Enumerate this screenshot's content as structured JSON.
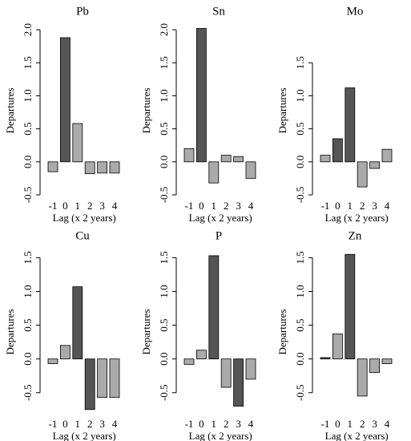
{
  "chart_data": [
    {
      "type": "bar",
      "title": "Pb",
      "xlabel": "Lag (x 2 years)",
      "ylabel": "Departures",
      "categories": [
        "-1",
        "0",
        "1",
        "2",
        "3",
        "4"
      ],
      "values": [
        -0.15,
        1.88,
        0.58,
        -0.18,
        -0.17,
        -0.17
      ],
      "colors": [
        "#aaaaaa",
        "#555555",
        "#aaaaaa",
        "#aaaaaa",
        "#aaaaaa",
        "#aaaaaa"
      ],
      "ylim": [
        -0.5,
        2.05
      ],
      "yticks": [
        -0.5,
        {
          "value": 0,
          "label": "0.0"
        },
        0.5,
        {
          "value": 1,
          "label": "1.0"
        },
        1.5,
        {
          "value": 2,
          "label": "2.0"
        }
      ]
    },
    {
      "type": "bar",
      "title": "Sn",
      "xlabel": "Lag (x 2 years)",
      "ylabel": "Departures",
      "categories": [
        "-1",
        "0",
        "1",
        "2",
        "3",
        "4"
      ],
      "values": [
        0.2,
        2.02,
        -0.32,
        0.1,
        0.08,
        -0.25
      ],
      "colors": [
        "#aaaaaa",
        "#555555",
        "#aaaaaa",
        "#aaaaaa",
        "#aaaaaa",
        "#aaaaaa"
      ],
      "ylim": [
        -0.5,
        2.05
      ],
      "yticks": [
        -0.5,
        {
          "value": 0,
          "label": "0.0"
        },
        0.5,
        {
          "value": 1,
          "label": "1.0"
        },
        1.5,
        {
          "value": 2,
          "label": "2.0"
        }
      ]
    },
    {
      "type": "bar",
      "title": "Mo",
      "xlabel": "Lag (x 2 years)",
      "ylabel": "Departures",
      "categories": [
        "-1",
        "0",
        "1",
        "2",
        "3",
        "4"
      ],
      "values": [
        0.1,
        0.35,
        1.12,
        -0.38,
        -0.1,
        0.19
      ],
      "colors": [
        "#aaaaaa",
        "#555555",
        "#555555",
        "#aaaaaa",
        "#aaaaaa",
        "#aaaaaa"
      ],
      "ylim": [
        -0.5,
        2.05
      ],
      "yticks": [
        -0.5,
        {
          "value": 0,
          "label": "0.0"
        },
        0.5,
        {
          "value": 1,
          "label": "1.0"
        },
        1.5
      ]
    },
    {
      "type": "bar",
      "title": "Cu",
      "xlabel": "Lag (x 2 years)",
      "ylabel": "Departures",
      "categories": [
        "-1",
        "0",
        "1",
        "2",
        "3",
        "4"
      ],
      "values": [
        -0.07,
        0.2,
        1.07,
        -0.75,
        -0.57,
        -0.57
      ],
      "colors": [
        "#aaaaaa",
        "#aaaaaa",
        "#555555",
        "#555555",
        "#aaaaaa",
        "#aaaaaa"
      ],
      "ylim": [
        -0.8,
        1.6
      ],
      "yticks": [
        -0.5,
        {
          "value": 0,
          "label": "0.0"
        },
        0.5,
        {
          "value": 1,
          "label": "1.0"
        },
        1.5
      ]
    },
    {
      "type": "bar",
      "title": "P",
      "xlabel": "Lag (x 2 years)",
      "ylabel": "Departures",
      "categories": [
        "-1",
        "0",
        "1",
        "2",
        "3",
        "4"
      ],
      "values": [
        -0.08,
        0.13,
        1.53,
        -0.42,
        -0.7,
        -0.3
      ],
      "colors": [
        "#aaaaaa",
        "#aaaaaa",
        "#555555",
        "#aaaaaa",
        "#555555",
        "#aaaaaa"
      ],
      "ylim": [
        -0.8,
        1.6
      ],
      "yticks": [
        -0.5,
        {
          "value": 0,
          "label": "0.0"
        },
        0.5,
        {
          "value": 1,
          "label": "1.0"
        },
        1.5
      ]
    },
    {
      "type": "bar",
      "title": "Zn",
      "xlabel": "Lag (x 2 years)",
      "ylabel": "Departures",
      "categories": [
        "-1",
        "0",
        "1",
        "2",
        "3",
        "4"
      ],
      "values": [
        0.02,
        0.37,
        1.55,
        -0.55,
        -0.2,
        -0.07
      ],
      "colors": [
        "#555555",
        "#aaaaaa",
        "#555555",
        "#aaaaaa",
        "#aaaaaa",
        "#aaaaaa"
      ],
      "ylim": [
        -0.8,
        1.6
      ],
      "yticks": [
        -0.5,
        {
          "value": 0,
          "label": "0.0"
        },
        0.5,
        {
          "value": 1,
          "label": "1.0"
        },
        1.5
      ]
    }
  ]
}
